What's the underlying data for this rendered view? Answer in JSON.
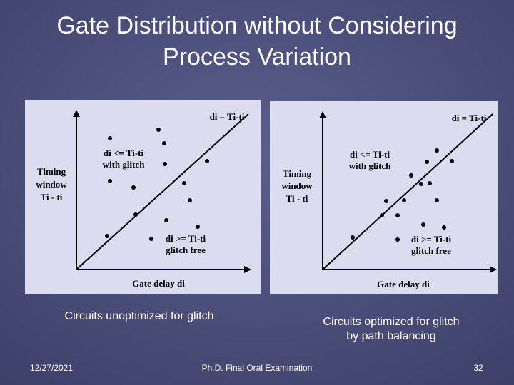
{
  "title": [
    "Gate Distribution without Considering",
    "Process Variation"
  ],
  "panels": [
    {
      "corner_label": "di = Ti-ti",
      "y_axis_label": [
        "Timing",
        "window",
        "Ti - ti"
      ],
      "upper_label": [
        "di <= Ti-ti",
        "with glitch"
      ],
      "lower_label": [
        "di >= Ti-ti",
        "glitch free"
      ],
      "x_axis_label": "Gate delay  di",
      "caption": [
        "Circuits unoptimized for glitch"
      ]
    },
    {
      "corner_label": "di = Ti-ti",
      "y_axis_label": [
        "Timing",
        "window",
        "Ti - ti"
      ],
      "upper_label": [
        "di <= Ti-ti",
        "with glitch"
      ],
      "lower_label": [
        "di >= Ti-ti",
        "glitch free"
      ],
      "x_axis_label": "Gate delay  di",
      "caption": [
        "Circuits optimized for glitch",
        "by path balancing"
      ]
    }
  ],
  "footer": {
    "date": "12/27/2021",
    "center": "Ph.D. Final Oral Examination",
    "page": "32"
  }
}
